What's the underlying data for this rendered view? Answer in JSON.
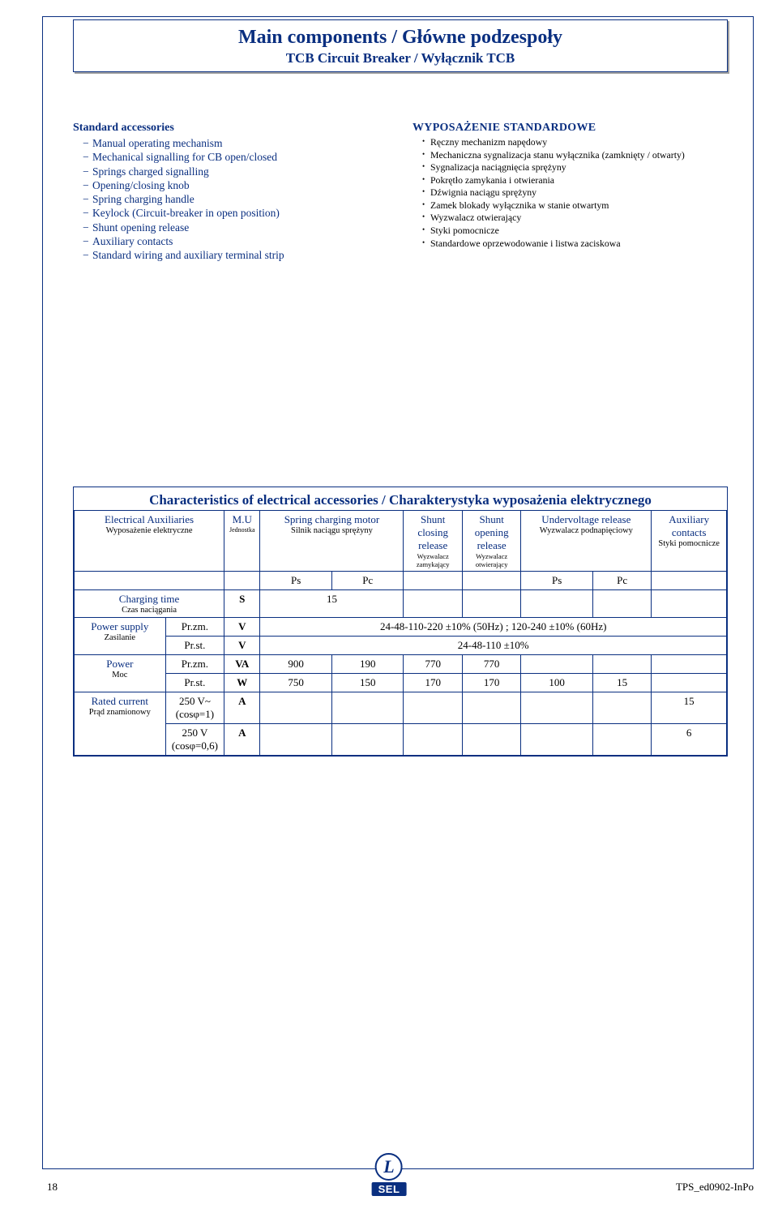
{
  "colors": {
    "primary": "#0a2f80",
    "text": "#000000",
    "bg": "#ffffff",
    "shadow": "#a0a0a0"
  },
  "header": {
    "title": "Main components / Główne podzespoły",
    "subtitle": "TCB Circuit Breaker / Wyłącznik TCB"
  },
  "left": {
    "title": "Standard accessories",
    "items": [
      "Manual operating mechanism",
      "Mechanical signalling for CB open/closed",
      "Springs charged signalling",
      "Opening/closing knob",
      "Spring charging handle",
      "Keylock (Circuit-breaker in open position)",
      "Shunt opening release",
      "Auxiliary contacts",
      "Standard wiring and auxiliary terminal strip"
    ]
  },
  "right": {
    "title": "WYPOSAŻENIE STANDARDOWE",
    "items": [
      "Ręczny mechanizm napędowy",
      "Mechaniczna sygnalizacja stanu wyłącznika (zamknięty / otwarty)",
      "Sygnalizacja naciągnięcia sprężyny",
      "Pokrętło zamykania i otwierania",
      "Dźwignia naciągu sprężyny",
      "Zamek blokady wyłącznika w stanie otwartym",
      "Wyzwalacz otwierający",
      "Styki pomocnicze",
      "Standardowe oprzewodowanie i listwa zaciskowa"
    ]
  },
  "char": {
    "title": "Characteristics of electrical accessories / Charakterystyka wyposażenia elektrycznego",
    "col_widths_pct": [
      14,
      9,
      5.5,
      11,
      11,
      9,
      9,
      11,
      9,
      11.5
    ],
    "headers": {
      "aux": {
        "en": "Electrical Auxiliaries",
        "pl": "Wyposażenie elektryczne"
      },
      "mu": {
        "en": "M.U",
        "pl": "Jednostka"
      },
      "motor": {
        "en": "Spring charging motor",
        "pl": "Silnik naciągu sprężyny"
      },
      "close": {
        "en": "Shunt closing release",
        "pl": "Wyzwalacz zamykający"
      },
      "open": {
        "en": "Shunt opening release",
        "pl": "Wyzwalacz otwierający"
      },
      "uv": {
        "en": "Undervoltage release",
        "pl": "Wyzwalacz podnapięciowy"
      },
      "auxc": {
        "en": "Auxiliary contacts",
        "pl": "Styki pomocnicze"
      }
    },
    "subcols": {
      "ps": "Ps",
      "pc": "Pc"
    },
    "rows": [
      {
        "label": {
          "en": "Charging time",
          "pl": "Czas naciągania"
        },
        "cond": "",
        "unit": "S",
        "cells": [
          "15",
          "",
          "",
          "",
          "",
          "",
          ""
        ],
        "span_motor": true
      },
      {
        "label": {
          "en": "Power supply",
          "pl": "Zasilanie"
        },
        "cond": "Pr.zm.",
        "unit": "V",
        "full": "24-48-110-220 ±10% (50Hz) ; 120-240 ±10% (60Hz)",
        "span_all": true
      },
      {
        "label": "",
        "cond": "Pr.st.",
        "unit": "V",
        "full": "24-48-110 ±10%",
        "span_all": true
      },
      {
        "label": {
          "en": "Power",
          "pl": "Moc"
        },
        "cond": "Pr.zm.",
        "unit": "VA",
        "cells": [
          "900",
          "190",
          "770",
          "770",
          "",
          "",
          ""
        ]
      },
      {
        "label": "",
        "cond": "Pr.st.",
        "unit": "W",
        "cells": [
          "750",
          "150",
          "170",
          "170",
          "100",
          "15",
          ""
        ]
      },
      {
        "label": {
          "en": "Rated current",
          "pl": "Prąd znamionowy"
        },
        "cond": "250 V~ (cosφ=1)",
        "unit": "A",
        "cells": [
          "",
          "",
          "",
          "",
          "",
          "",
          "15"
        ]
      },
      {
        "label": "",
        "cond": "250 V (cosφ=0,6)",
        "unit": "A",
        "cells": [
          "",
          "",
          "",
          "",
          "",
          "",
          "6"
        ]
      }
    ]
  },
  "footer": {
    "page": "18",
    "doc": "TPS_ed0902-InPo",
    "brand": "SEL"
  }
}
